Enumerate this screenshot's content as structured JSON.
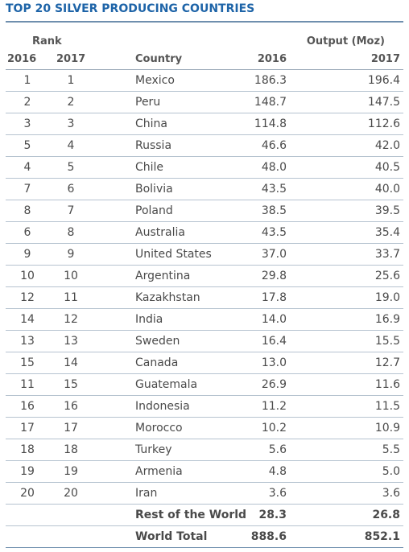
{
  "title": "TOP 20 SILVER PRODUCING COUNTRIES",
  "headers": {
    "rank": "Rank",
    "output": "Output (Moz)",
    "rank_2016": "2016",
    "rank_2017": "2017",
    "country": "Country",
    "output_2016": "2016",
    "output_2017": "2017"
  },
  "rows": [
    {
      "r16": "1",
      "r17": "1",
      "country": "Mexico",
      "o16": "186.3",
      "o17": "196.4"
    },
    {
      "r16": "2",
      "r17": "2",
      "country": "Peru",
      "o16": "148.7",
      "o17": "147.5"
    },
    {
      "r16": "3",
      "r17": "3",
      "country": "China",
      "o16": "114.8",
      "o17": "112.6"
    },
    {
      "r16": "5",
      "r17": "4",
      "country": "Russia",
      "o16": "46.6",
      "o17": "42.0"
    },
    {
      "r16": "4",
      "r17": "5",
      "country": "Chile",
      "o16": "48.0",
      "o17": "40.5"
    },
    {
      "r16": "7",
      "r17": "6",
      "country": "Bolivia",
      "o16": "43.5",
      "o17": "40.0"
    },
    {
      "r16": "8",
      "r17": "7",
      "country": "Poland",
      "o16": "38.5",
      "o17": "39.5"
    },
    {
      "r16": "6",
      "r17": "8",
      "country": "Australia",
      "o16": "43.5",
      "o17": "35.4"
    },
    {
      "r16": "9",
      "r17": "9",
      "country": "United States",
      "o16": "37.0",
      "o17": "33.7"
    },
    {
      "r16": "10",
      "r17": "10",
      "country": "Argentina",
      "o16": "29.8",
      "o17": "25.6"
    },
    {
      "r16": "12",
      "r17": "11",
      "country": "Kazakhstan",
      "o16": "17.8",
      "o17": "19.0"
    },
    {
      "r16": "14",
      "r17": "12",
      "country": "India",
      "o16": "14.0",
      "o17": "16.9"
    },
    {
      "r16": "13",
      "r17": "13",
      "country": "Sweden",
      "o16": "16.4",
      "o17": "15.5"
    },
    {
      "r16": "15",
      "r17": "14",
      "country": "Canada",
      "o16": "13.0",
      "o17": "12.7"
    },
    {
      "r16": "11",
      "r17": "15",
      "country": "Guatemala",
      "o16": "26.9",
      "o17": "11.6"
    },
    {
      "r16": "16",
      "r17": "16",
      "country": "Indonesia",
      "o16": "11.2",
      "o17": "11.5"
    },
    {
      "r16": "17",
      "r17": "17",
      "country": "Morocco",
      "o16": "10.2",
      "o17": "10.9"
    },
    {
      "r16": "18",
      "r17": "18",
      "country": "Turkey",
      "o16": "5.6",
      "o17": "5.5"
    },
    {
      "r16": "19",
      "r17": "19",
      "country": "Armenia",
      "o16": "4.8",
      "o17": "5.0"
    },
    {
      "r16": "20",
      "r17": "20",
      "country": "Iran",
      "o16": "3.6",
      "o17": "3.6"
    }
  ],
  "totals": [
    {
      "label": "Rest of the World",
      "o16": "28.3",
      "o17": "26.8"
    },
    {
      "label": "World Total",
      "o16": "888.6",
      "o17": "852.1"
    }
  ],
  "colors": {
    "title": "#1e64a8",
    "text": "#4a4a4a",
    "rule": "#b6c3d0"
  }
}
